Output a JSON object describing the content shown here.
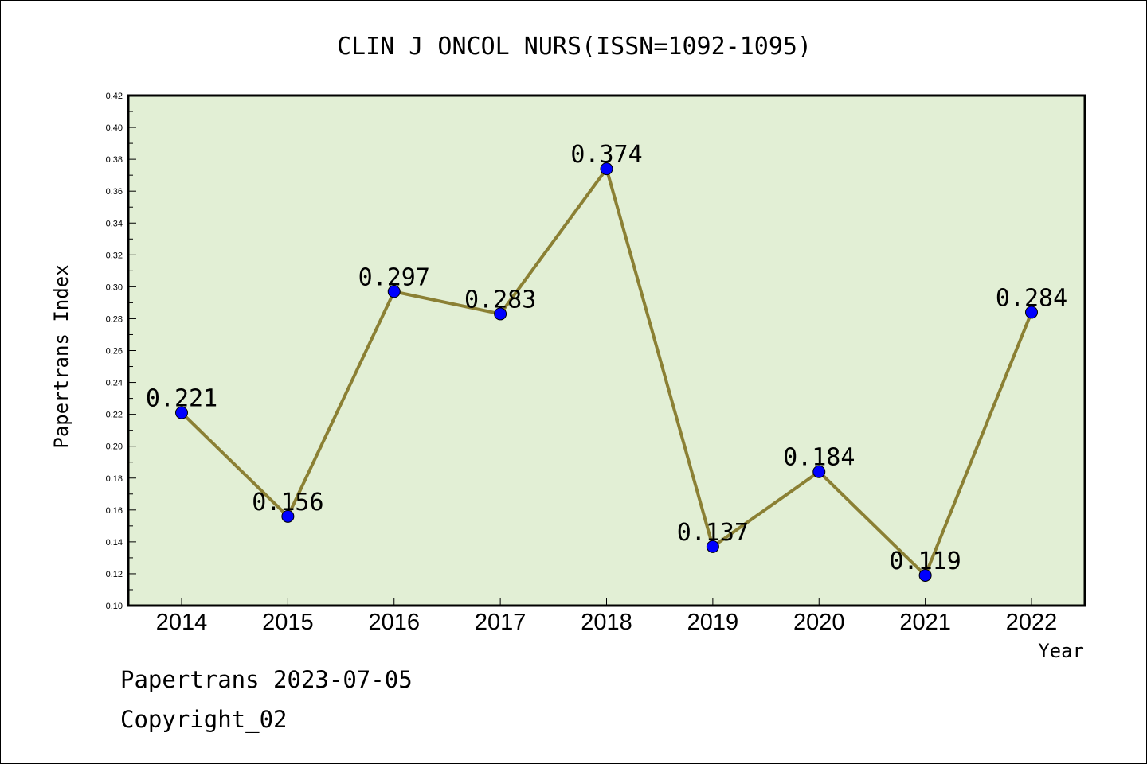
{
  "chart_data": {
    "type": "line",
    "title": "CLIN J ONCOL NURS(ISSN=1092-1095)",
    "xlabel": "Year",
    "ylabel": "Papertrans Index",
    "categories": [
      "2014",
      "2015",
      "2016",
      "2017",
      "2018",
      "2019",
      "2020",
      "2021",
      "2022"
    ],
    "series": [
      {
        "values": [
          0.221,
          0.156,
          0.297,
          0.283,
          0.374,
          0.137,
          0.184,
          0.119,
          0.284
        ],
        "labels": [
          "0.221",
          "0.156",
          "0.297",
          "0.283",
          "0.374",
          "0.137",
          "0.184",
          "0.119",
          "0.284"
        ]
      }
    ],
    "ylim": [
      0.1,
      0.42
    ],
    "yticks": [
      "0.10",
      "0.12",
      "0.14",
      "0.16",
      "0.18",
      "0.20",
      "0.22",
      "0.24",
      "0.26",
      "0.28",
      "0.30",
      "0.32",
      "0.34",
      "0.36",
      "0.38",
      "0.40",
      "0.42"
    ],
    "grid": false,
    "colors": {
      "plot_bg": "#e2efd5",
      "line": "#8b8034",
      "marker": "#0000ff"
    }
  },
  "footer": {
    "date_line": "Papertrans 2023-07-05",
    "copyright": "Copyright_02"
  }
}
